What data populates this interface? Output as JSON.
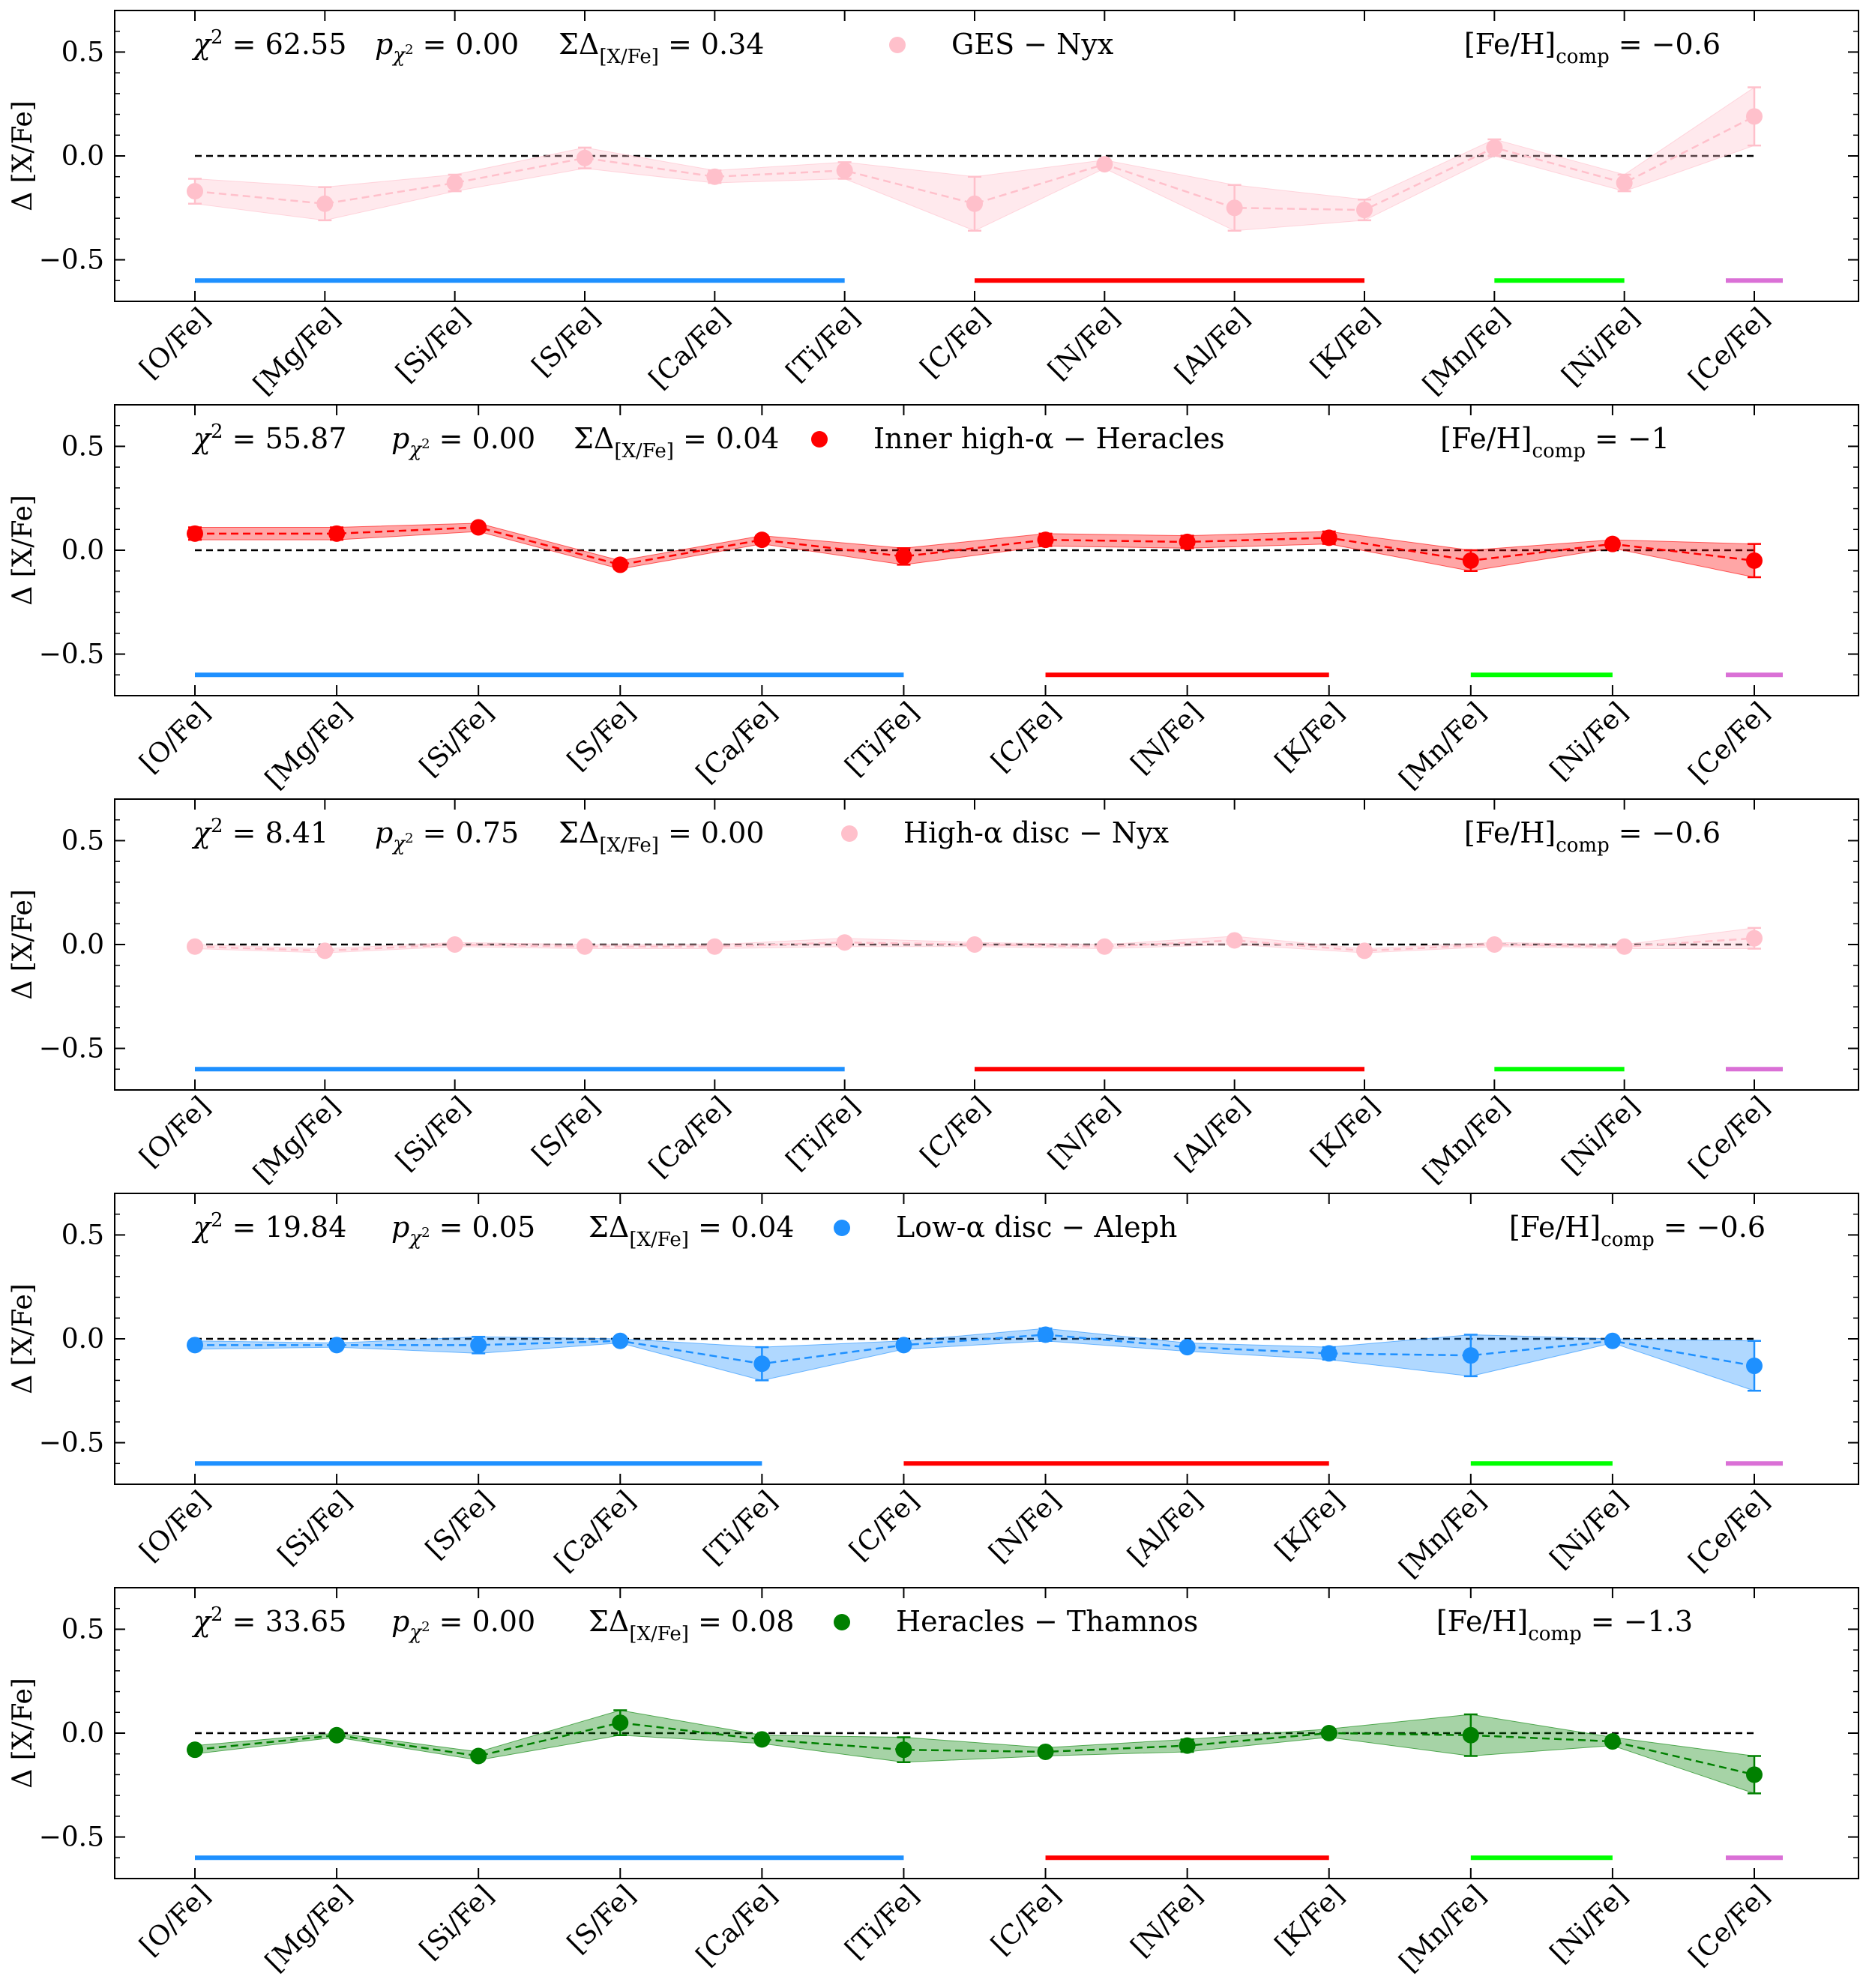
{
  "chart_data": [
    {
      "type": "line",
      "legend_label": "GES − Nyx",
      "color": "#ffc0cb",
      "stats": {
        "chi2": "62.55",
        "p": "0.00",
        "sigma": "0.34",
        "feh": "−0.6"
      },
      "ylabel": "Δ [X/Fe]",
      "ylim": [
        -0.7,
        0.7
      ],
      "yticks": [
        0.5,
        0.0,
        -0.5
      ],
      "ytick_labels": [
        "0.5",
        "0.0",
        "−0.5"
      ],
      "categories": [
        "[O/Fe]",
        "[Mg/Fe]",
        "[Si/Fe]",
        "[S/Fe]",
        "[Ca/Fe]",
        "[Ti/Fe]",
        "[C/Fe]",
        "[N/Fe]",
        "[Al/Fe]",
        "[K/Fe]",
        "[Mn/Fe]",
        "[Ni/Fe]",
        "[Ce/Fe]"
      ],
      "values": [
        -0.17,
        -0.23,
        -0.13,
        -0.01,
        -0.1,
        -0.07,
        -0.23,
        -0.04,
        -0.25,
        -0.26,
        0.04,
        -0.13,
        0.19
      ],
      "errors": [
        0.06,
        0.08,
        0.04,
        0.05,
        0.03,
        0.04,
        0.13,
        0.02,
        0.11,
        0.05,
        0.04,
        0.04,
        0.14
      ],
      "groups": [
        {
          "color": "#1e90ff",
          "from": 0,
          "to": 5
        },
        {
          "color": "#ff0000",
          "from": 6,
          "to": 9
        },
        {
          "color": "#00ff00",
          "from": 10,
          "to": 11
        },
        {
          "color": "#da70d6",
          "from": 12,
          "to": 12
        }
      ]
    },
    {
      "type": "line",
      "legend_label": "Inner high-α − Heracles",
      "color": "#ff0000",
      "stats": {
        "chi2": "55.87",
        "p": "0.00",
        "sigma": "0.04",
        "feh": "−1"
      },
      "ylabel": "Δ [X/Fe]",
      "ylim": [
        -0.7,
        0.7
      ],
      "yticks": [
        0.5,
        0.0,
        -0.5
      ],
      "ytick_labels": [
        "0.5",
        "0.0",
        "−0.5"
      ],
      "categories": [
        "[O/Fe]",
        "[Mg/Fe]",
        "[Si/Fe]",
        "[S/Fe]",
        "[Ca/Fe]",
        "[Ti/Fe]",
        "[C/Fe]",
        "[N/Fe]",
        "[K/Fe]",
        "[Mn/Fe]",
        "[Ni/Fe]",
        "[Ce/Fe]"
      ],
      "values": [
        0.08,
        0.08,
        0.11,
        -0.07,
        0.05,
        -0.03,
        0.05,
        0.04,
        0.06,
        -0.05,
        0.03,
        -0.05
      ],
      "errors": [
        0.03,
        0.03,
        0.02,
        0.02,
        0.02,
        0.04,
        0.03,
        0.03,
        0.03,
        0.05,
        0.02,
        0.08
      ],
      "groups": [
        {
          "color": "#1e90ff",
          "from": 0,
          "to": 5
        },
        {
          "color": "#ff0000",
          "from": 6,
          "to": 8
        },
        {
          "color": "#00ff00",
          "from": 9,
          "to": 10
        },
        {
          "color": "#da70d6",
          "from": 11,
          "to": 11
        }
      ]
    },
    {
      "type": "line",
      "legend_label": "High-α disc − Nyx",
      "color": "#ffc0cb",
      "stats": {
        "chi2": "8.41",
        "p": "0.75",
        "sigma": "0.00",
        "feh": "−0.6"
      },
      "ylabel": "Δ [X/Fe]",
      "ylim": [
        -0.7,
        0.7
      ],
      "yticks": [
        0.5,
        0.0,
        -0.5
      ],
      "ytick_labels": [
        "0.5",
        "0.0",
        "−0.5"
      ],
      "categories": [
        "[O/Fe]",
        "[Mg/Fe]",
        "[Si/Fe]",
        "[S/Fe]",
        "[Ca/Fe]",
        "[Ti/Fe]",
        "[C/Fe]",
        "[N/Fe]",
        "[Al/Fe]",
        "[K/Fe]",
        "[Mn/Fe]",
        "[Ni/Fe]",
        "[Ce/Fe]"
      ],
      "values": [
        -0.01,
        -0.03,
        0.0,
        -0.01,
        -0.01,
        0.01,
        0.0,
        -0.01,
        0.02,
        -0.03,
        0.0,
        -0.01,
        0.03
      ],
      "errors": [
        0.01,
        0.01,
        0.01,
        0.01,
        0.01,
        0.02,
        0.01,
        0.01,
        0.02,
        0.01,
        0.01,
        0.01,
        0.05
      ],
      "groups": [
        {
          "color": "#1e90ff",
          "from": 0,
          "to": 5
        },
        {
          "color": "#ff0000",
          "from": 6,
          "to": 9
        },
        {
          "color": "#00ff00",
          "from": 10,
          "to": 11
        },
        {
          "color": "#da70d6",
          "from": 12,
          "to": 12
        }
      ]
    },
    {
      "type": "line",
      "legend_label": "Low-α disc − Aleph",
      "color": "#1e90ff",
      "stats": {
        "chi2": "19.84",
        "p": "0.05",
        "sigma": "0.04",
        "feh": "−0.6"
      },
      "ylabel": "Δ [X/Fe]",
      "ylim": [
        -0.7,
        0.7
      ],
      "yticks": [
        0.5,
        0.0,
        -0.5
      ],
      "ytick_labels": [
        "0.5",
        "0.0",
        "−0.5"
      ],
      "categories": [
        "[O/Fe]",
        "[Si/Fe]",
        "[S/Fe]",
        "[Ca/Fe]",
        "[Ti/Fe]",
        "[C/Fe]",
        "[N/Fe]",
        "[Al/Fe]",
        "[K/Fe]",
        "[Mn/Fe]",
        "[Ni/Fe]",
        "[Ce/Fe]"
      ],
      "values": [
        -0.03,
        -0.03,
        -0.03,
        -0.01,
        -0.12,
        -0.03,
        0.02,
        -0.04,
        -0.07,
        -0.08,
        -0.01,
        -0.13
      ],
      "errors": [
        0.02,
        0.01,
        0.04,
        0.01,
        0.08,
        0.02,
        0.03,
        0.02,
        0.03,
        0.1,
        0.01,
        0.12
      ],
      "groups": [
        {
          "color": "#1e90ff",
          "from": 0,
          "to": 4
        },
        {
          "color": "#ff0000",
          "from": 5,
          "to": 8
        },
        {
          "color": "#00ff00",
          "from": 9,
          "to": 10
        },
        {
          "color": "#da70d6",
          "from": 11,
          "to": 11
        }
      ]
    },
    {
      "type": "line",
      "legend_label": "Heracles − Thamnos",
      "color": "#008000",
      "stats": {
        "chi2": "33.65",
        "p": "0.00",
        "sigma": "0.08",
        "feh": "−1.3"
      },
      "ylabel": "Δ [X/Fe]",
      "ylim": [
        -0.7,
        0.7
      ],
      "yticks": [
        0.5,
        0.0,
        -0.5
      ],
      "ytick_labels": [
        "0.5",
        "0.0",
        "−0.5"
      ],
      "categories": [
        "[O/Fe]",
        "[Mg/Fe]",
        "[Si/Fe]",
        "[S/Fe]",
        "[Ca/Fe]",
        "[Ti/Fe]",
        "[C/Fe]",
        "[N/Fe]",
        "[K/Fe]",
        "[Mn/Fe]",
        "[Ni/Fe]",
        "[Ce/Fe]"
      ],
      "values": [
        -0.08,
        -0.01,
        -0.11,
        0.05,
        -0.03,
        -0.08,
        -0.09,
        -0.06,
        0.0,
        -0.01,
        -0.04,
        -0.2
      ],
      "errors": [
        0.02,
        0.01,
        0.02,
        0.06,
        0.02,
        0.06,
        0.02,
        0.03,
        0.02,
        0.1,
        0.02,
        0.09
      ],
      "groups": [
        {
          "color": "#1e90ff",
          "from": 0,
          "to": 5
        },
        {
          "color": "#ff0000",
          "from": 6,
          "to": 8
        },
        {
          "color": "#00ff00",
          "from": 9,
          "to": 10
        },
        {
          "color": "#da70d6",
          "from": 11,
          "to": 11
        }
      ]
    }
  ]
}
